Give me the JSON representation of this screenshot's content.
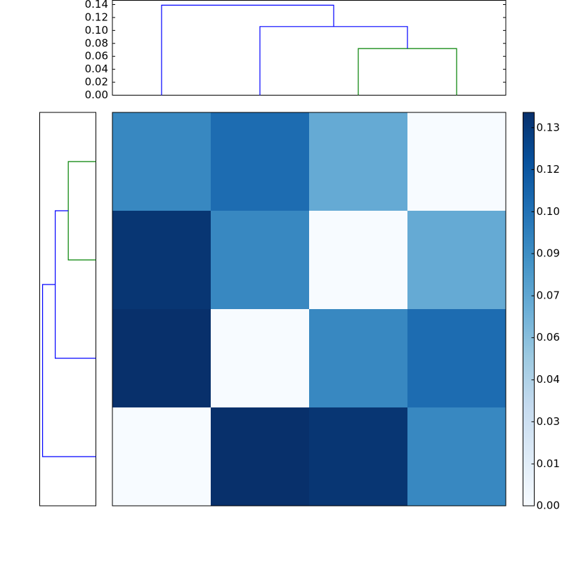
{
  "chart_data": [
    {
      "type": "dendrogram",
      "orientation": "top",
      "xlim": [
        0,
        40
      ],
      "ylim": [
        0,
        0.1465
      ],
      "yticks": [
        {
          "value": 0,
          "label": "0.00"
        },
        {
          "value": 0.02,
          "label": "0.02"
        },
        {
          "value": 0.04,
          "label": "0.04"
        },
        {
          "value": 0.06,
          "label": "0.06"
        },
        {
          "value": 0.08,
          "label": "0.08"
        },
        {
          "value": 0.1,
          "label": "0.10"
        },
        {
          "value": 0.12,
          "label": "0.12"
        },
        {
          "value": 0.14,
          "label": "0.14"
        }
      ],
      "links": [
        {
          "color": "#008000",
          "pos": [
            25,
            25,
            35,
            35
          ],
          "height": [
            0,
            0.072,
            0.072,
            0
          ]
        },
        {
          "color": "#0000ff",
          "pos": [
            15,
            15,
            30,
            30
          ],
          "height": [
            0,
            0.106,
            0.106,
            0.072
          ]
        },
        {
          "color": "#0000ff",
          "pos": [
            5,
            5,
            22.5,
            22.5
          ],
          "height": [
            0,
            0.139,
            0.139,
            0.106
          ]
        }
      ]
    },
    {
      "type": "dendrogram",
      "orientation": "left",
      "xlim": [
        0.1465,
        0
      ],
      "ylim": [
        40,
        0
      ],
      "links": [
        {
          "color": "#008000",
          "pos": [
            5,
            5,
            15,
            15
          ],
          "height": [
            0,
            0.072,
            0.072,
            0
          ]
        },
        {
          "color": "#0000ff",
          "pos": [
            10,
            10,
            25,
            25
          ],
          "height": [
            0.072,
            0.106,
            0.106,
            0
          ]
        },
        {
          "color": "#0000ff",
          "pos": [
            17.5,
            17.5,
            35,
            35
          ],
          "height": [
            0.106,
            0.139,
            0.139,
            0
          ]
        }
      ]
    },
    {
      "type": "heatmap",
      "colormap": "Blues",
      "clim": [
        0,
        0.139
      ],
      "values": [
        [
          0.092,
          0.107,
          0.072,
          0
        ],
        [
          0.136,
          0.092,
          0,
          0.072
        ],
        [
          0.139,
          0,
          0.092,
          0.107
        ],
        [
          0,
          0.139,
          0.136,
          0.092
        ]
      ],
      "colorbar": {
        "yticks": [
          {
            "value": 0,
            "label": "0.00"
          },
          {
            "value": 0.0148,
            "label": "0.01"
          },
          {
            "value": 0.0297,
            "label": "0.03"
          },
          {
            "value": 0.0445,
            "label": "0.04"
          },
          {
            "value": 0.0594,
            "label": "0.06"
          },
          {
            "value": 0.0742,
            "label": "0.07"
          },
          {
            "value": 0.0891,
            "label": "0.09"
          },
          {
            "value": 0.1039,
            "label": "0.10"
          },
          {
            "value": 0.1188,
            "label": "0.12"
          },
          {
            "value": 0.1336,
            "label": "0.13"
          }
        ]
      }
    }
  ]
}
